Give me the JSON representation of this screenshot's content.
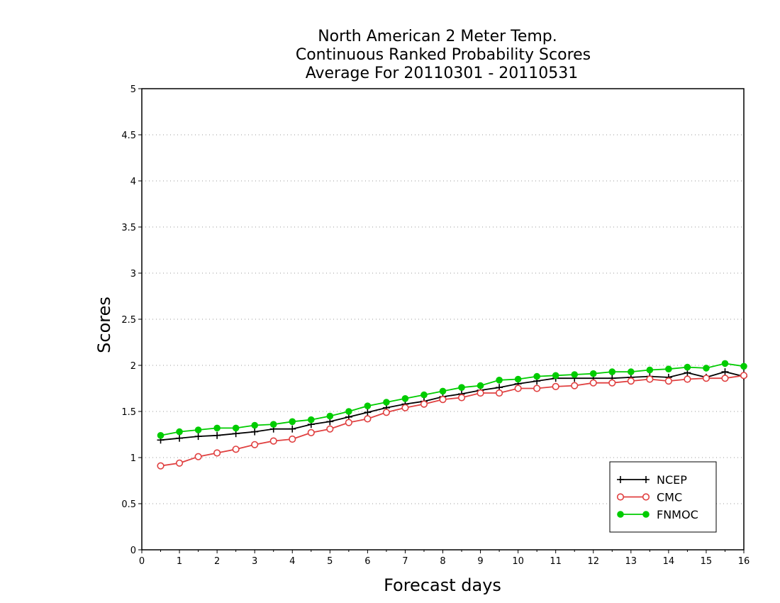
{
  "chart_data": {
    "type": "line",
    "title_lines": [
      "North American 2 Meter Temp.",
      "Continuous Ranked Probability Scores",
      "Average For 20110301 - 20110531"
    ],
    "xlabel": "Forecast days",
    "ylabel": "Scores",
    "xlim": [
      0,
      16
    ],
    "ylim": [
      0,
      5
    ],
    "x_ticks": [
      "0",
      "1",
      "2",
      "3",
      "4",
      "5",
      "6",
      "7",
      "8",
      "9",
      "10",
      "11",
      "12",
      "13",
      "14",
      "15",
      "16"
    ],
    "y_ticks": [
      "0",
      "0.5",
      "1",
      "1.5",
      "2",
      "2.5",
      "3",
      "3.5",
      "4",
      "4.5",
      "5"
    ],
    "grid": "horizontal dotted",
    "legend_position": "bottom-right",
    "x": [
      0.5,
      1,
      1.5,
      2,
      2.5,
      3,
      3.5,
      4,
      4.5,
      5,
      5.5,
      6,
      6.5,
      7,
      7.5,
      8,
      8.5,
      9,
      9.5,
      10,
      10.5,
      11,
      11.5,
      12,
      12.5,
      13,
      13.5,
      14,
      14.5,
      15,
      15.5,
      16
    ],
    "series": [
      {
        "name": "NCEP",
        "color": "#000000",
        "marker": "plus",
        "values": [
          1.19,
          1.21,
          1.23,
          1.24,
          1.26,
          1.28,
          1.31,
          1.31,
          1.36,
          1.39,
          1.44,
          1.49,
          1.54,
          1.58,
          1.61,
          1.66,
          1.69,
          1.73,
          1.76,
          1.8,
          1.83,
          1.86,
          1.86,
          1.86,
          1.86,
          1.87,
          1.88,
          1.87,
          1.92,
          1.87,
          1.93,
          1.88
        ]
      },
      {
        "name": "CMC",
        "color": "#e04040",
        "marker": "open-circle",
        "values": [
          0.91,
          0.94,
          1.01,
          1.05,
          1.09,
          1.14,
          1.18,
          1.2,
          1.27,
          1.31,
          1.38,
          1.42,
          1.49,
          1.54,
          1.58,
          1.63,
          1.65,
          1.7,
          1.7,
          1.75,
          1.75,
          1.77,
          1.78,
          1.81,
          1.81,
          1.83,
          1.85,
          1.83,
          1.85,
          1.86,
          1.86,
          1.89
        ]
      },
      {
        "name": "FNMOC",
        "color": "#00cc00",
        "marker": "filled-circle",
        "values": [
          1.24,
          1.28,
          1.3,
          1.32,
          1.32,
          1.35,
          1.36,
          1.39,
          1.41,
          1.45,
          1.5,
          1.56,
          1.6,
          1.64,
          1.68,
          1.72,
          1.76,
          1.78,
          1.84,
          1.85,
          1.88,
          1.89,
          1.9,
          1.91,
          1.93,
          1.93,
          1.95,
          1.96,
          1.98,
          1.97,
          2.02,
          1.99
        ]
      }
    ]
  }
}
